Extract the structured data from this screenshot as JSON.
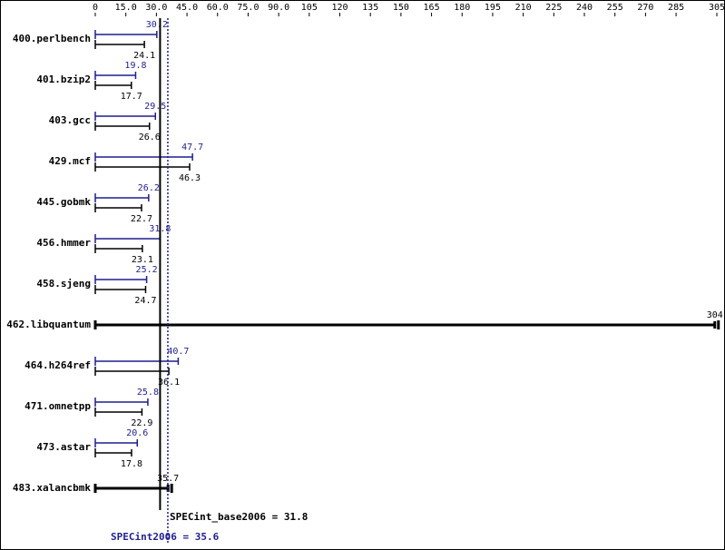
{
  "chart_data": {
    "type": "bar",
    "categories": [
      "400.perlbench",
      "401.bzip2",
      "403.gcc",
      "429.mcf",
      "445.gobmk",
      "456.hmmer",
      "458.sjeng",
      "462.libquantum",
      "464.h264ref",
      "471.omnetpp",
      "473.astar",
      "483.xalancbmk"
    ],
    "series": [
      {
        "color": "#1f1f8f",
        "values": [
          30.2,
          19.8,
          29.5,
          47.7,
          26.2,
          31.8,
          25.2,
          null,
          40.7,
          25.8,
          20.6,
          null
        ]
      },
      {
        "color": "#000000",
        "values": [
          24.1,
          17.7,
          26.6,
          46.3,
          22.7,
          23.1,
          24.7,
          304,
          36.1,
          22.9,
          17.8,
          35.7
        ]
      }
    ],
    "xlim": [
      0,
      305
    ],
    "xticks": [
      0,
      {
        "value": 15,
        "label": "15.0"
      },
      {
        "value": 30,
        "label": "30.0"
      },
      {
        "value": 45,
        "label": "45.0"
      },
      {
        "value": 60,
        "label": "60.0"
      },
      {
        "value": 75,
        "label": "75.0"
      },
      {
        "value": 90,
        "label": "90.0"
      },
      105,
      120,
      135,
      150,
      165,
      180,
      195,
      210,
      225,
      240,
      255,
      270,
      285,
      305
    ],
    "reference_lines": [
      {
        "label": "SPECint_base2006 = 31.8",
        "value": 31.8,
        "color": "#000000",
        "style": "solid"
      },
      {
        "label": "SPECint2006 = 35.6",
        "value": 35.6,
        "color": "#1f1f8f",
        "style": "dotted"
      }
    ]
  }
}
